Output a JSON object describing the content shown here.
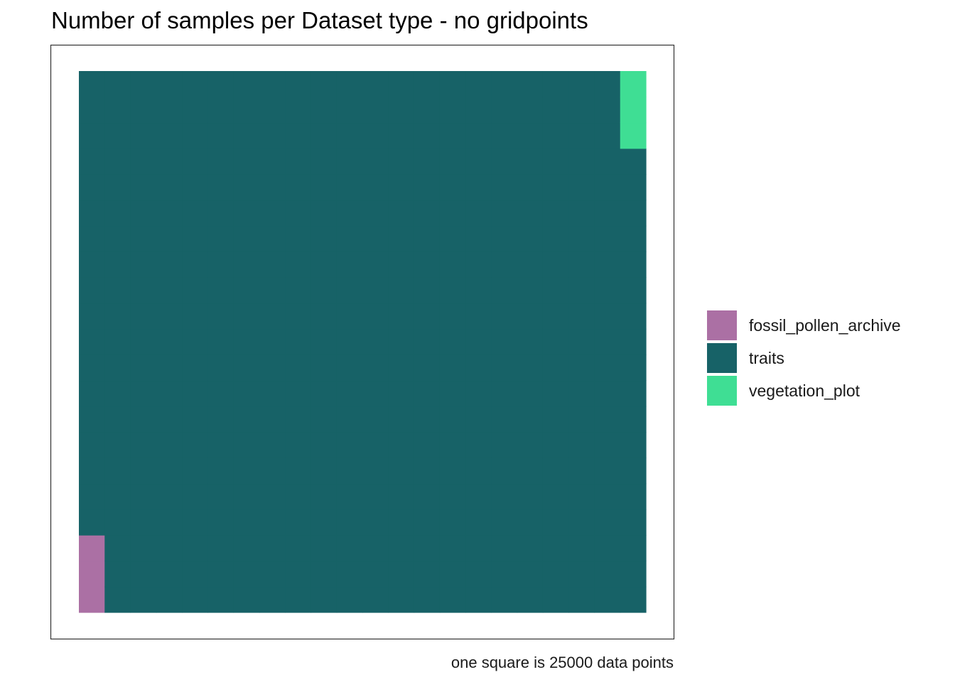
{
  "chart_data": {
    "type": "waffle",
    "title": "Number of samples per Dataset type - no gridpoints",
    "caption": "one square is 25000 data points",
    "grid": {
      "rows": 21,
      "cols": 22
    },
    "fill_order": "column-major-bottom-to-top",
    "series": [
      {
        "name": "fossil_pollen_archive",
        "squares": 3,
        "color": "#ab70a4"
      },
      {
        "name": "traits",
        "squares": 456,
        "color": "#176267"
      },
      {
        "name": "vegetation_plot",
        "squares": 3,
        "color": "#3fde94"
      }
    ],
    "legend_position": "right"
  }
}
